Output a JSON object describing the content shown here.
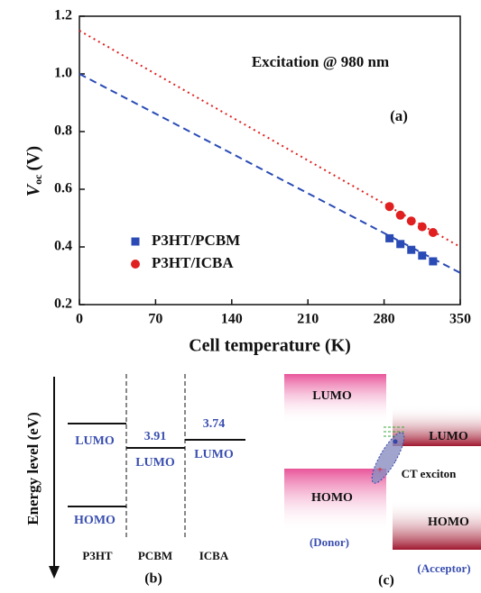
{
  "chart_data": {
    "type": "scatter",
    "ylabel": {
      "main": "V",
      "sub": "oc",
      "unit": "(V)"
    },
    "xlabel": "Cell temperature (K)",
    "annotations": [
      "Excitation @ 980 nm",
      "(a)"
    ],
    "xlim": [
      0,
      350
    ],
    "xticks": [
      0,
      70,
      140,
      210,
      280,
      350
    ],
    "ylim": [
      0.2,
      1.2
    ],
    "yticks": [
      0.2,
      0.4,
      0.6,
      0.8,
      {
        "value": 1,
        "label": "1.0"
      },
      1.2
    ],
    "series": [
      {
        "name": "P3HT/PCBM",
        "color": "#2a4bb5",
        "marker": "square",
        "x": [
          285,
          295,
          305,
          315,
          325
        ],
        "values": [
          0.43,
          0.41,
          0.39,
          0.37,
          0.35
        ]
      },
      {
        "name": "P3HT/ICBA",
        "color": "#e02020",
        "marker": "circle",
        "x": [
          285,
          295,
          305,
          315,
          325
        ],
        "values": [
          0.54,
          0.51,
          0.49,
          0.47,
          0.45
        ]
      }
    ],
    "fit_lines": [
      {
        "color": "#2a4bb5",
        "dash": "dashed",
        "x": [
          0,
          350
        ],
        "values": [
          1.0,
          0.31
        ]
      },
      {
        "color": "#e02020",
        "dash": "dotted",
        "x": [
          0,
          350
        ],
        "values": [
          1.15,
          0.4
        ]
      }
    ]
  },
  "panel_b": {
    "axis_label": "Energy level (eV)",
    "p3ht_lumo": "LUMO",
    "p3ht_homo": "HOMO",
    "pcbm_value": "3.91",
    "pcbm_lumo": "LUMO",
    "icba_value": "3.74",
    "icba_lumo": "LUMO",
    "materials": [
      "P3HT",
      "PCBM",
      "ICBA"
    ],
    "caption": "(b)"
  },
  "panel_c": {
    "donor_lumo": "LUMO",
    "donor_homo": "HOMO",
    "acceptor_lumo": "LUMO",
    "acceptor_homo": "HOMO",
    "exciton": "CT exciton",
    "donor": "(Donor)",
    "acceptor": "(Acceptor)",
    "caption": "(c)"
  }
}
